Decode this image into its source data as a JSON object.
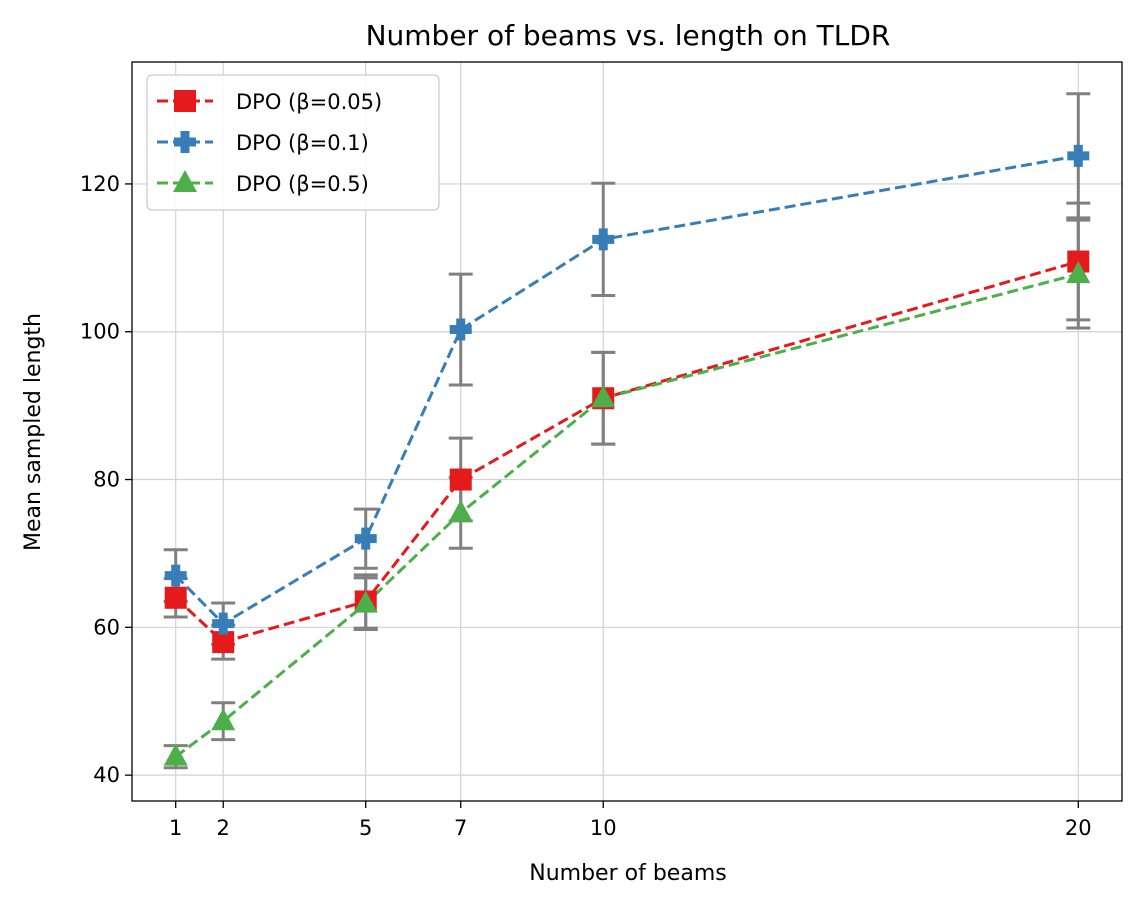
{
  "chart_data": {
    "type": "line",
    "title": "Number of beams vs. length on TLDR",
    "xlabel": "Number of beams",
    "ylabel": "Mean sampled length",
    "x": [
      1,
      2,
      5,
      7,
      10,
      20
    ],
    "xticks": [
      1,
      2,
      5,
      7,
      10,
      20
    ],
    "yticks": [
      40,
      60,
      80,
      100,
      120
    ],
    "xlim": [
      0.08,
      20.92
    ],
    "ylim": [
      36.5,
      136.5
    ],
    "grid": true,
    "legend_position": "top-left",
    "error_bar_color": "#808080",
    "series": [
      {
        "name": "DPO (β=0.05)",
        "color": "#e41a1c",
        "marker": "square",
        "values": [
          64.0,
          58.0,
          63.5,
          80.0,
          91.0,
          109.5
        ],
        "errors": [
          2.6,
          2.3,
          3.6,
          5.6,
          6.2,
          7.9
        ]
      },
      {
        "name": "DPO (β=0.1)",
        "color": "#377eb8",
        "marker": "plus",
        "values": [
          67.0,
          60.5,
          72.0,
          100.3,
          112.5,
          123.8
        ],
        "errors": [
          3.5,
          2.8,
          4.0,
          7.5,
          7.6,
          8.4
        ]
      },
      {
        "name": "DPO (β=0.5)",
        "color": "#4daf4a",
        "marker": "triangle",
        "values": [
          42.5,
          47.3,
          63.2,
          75.5,
          91.0,
          107.8
        ],
        "errors": [
          1.5,
          2.5,
          3.5,
          4.8,
          6.2,
          7.3
        ]
      }
    ]
  }
}
